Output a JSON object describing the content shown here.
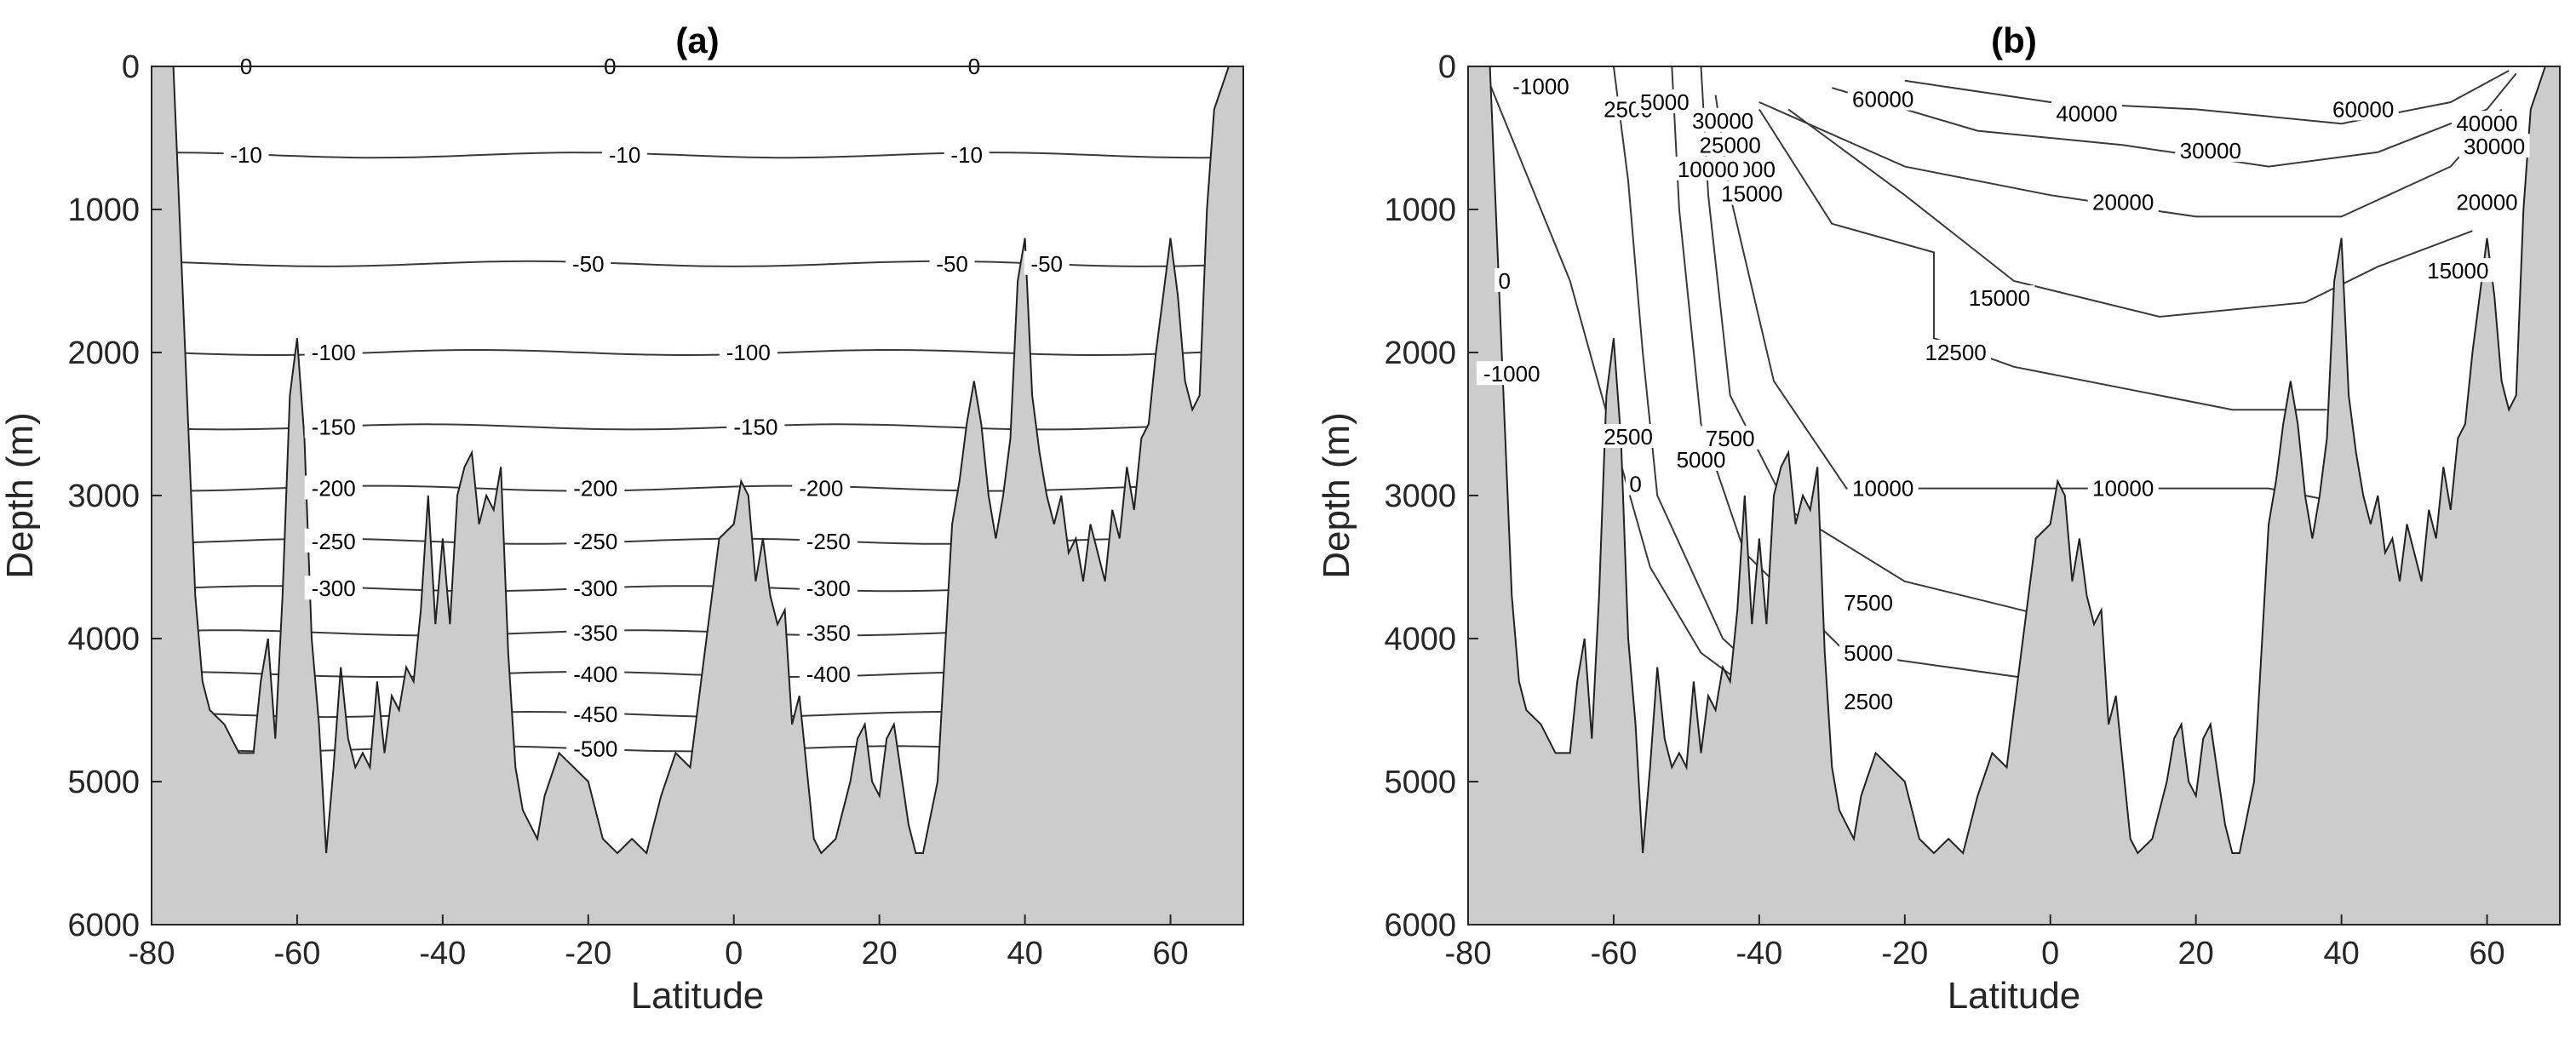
{
  "chart_data": [
    {
      "type": "contour",
      "title": "(a)",
      "xlabel": "Latitude",
      "ylabel": "Depth (m)",
      "xlim": [
        -80,
        70
      ],
      "ylim": [
        6000,
        0
      ],
      "xticks": [
        "-80",
        "-60",
        "-40",
        "-20",
        "0",
        "20",
        "40",
        "60"
      ],
      "yticks": [
        "0",
        "1000",
        "2000",
        "3000",
        "4000",
        "5000",
        "6000"
      ],
      "contours": [
        {
          "level": "0",
          "depth": 0,
          "labels_at": [
            -67,
            -17,
            33
          ]
        },
        {
          "level": "-10",
          "depth": 620,
          "labels_at": [
            -67,
            -15,
            32
          ]
        },
        {
          "level": "-50",
          "depth": 1380,
          "labels_at": [
            -20,
            30,
            43
          ]
        },
        {
          "level": "-100",
          "depth": 2000,
          "labels_at": [
            -55,
            2
          ]
        },
        {
          "level": "-150",
          "depth": 2520,
          "labels_at": [
            -55,
            3
          ]
        },
        {
          "level": "-200",
          "depth": 2950,
          "labels_at": [
            -55,
            -19,
            12
          ]
        },
        {
          "level": "-250",
          "depth": 3320,
          "labels_at": [
            -55,
            -19,
            13
          ]
        },
        {
          "level": "-300",
          "depth": 3650,
          "labels_at": [
            -55,
            -19,
            13
          ]
        },
        {
          "level": "-350",
          "depth": 3960,
          "labels_at": [
            -19,
            13
          ]
        },
        {
          "level": "-400",
          "depth": 4250,
          "labels_at": [
            -19,
            13
          ]
        },
        {
          "level": "-450",
          "depth": 4530,
          "labels_at": [
            -19
          ]
        },
        {
          "level": "-500",
          "depth": 4770,
          "labels_at": [
            -19
          ]
        }
      ]
    },
    {
      "type": "contour",
      "title": "(b)",
      "xlabel": "Latitude",
      "ylabel": "Depth (m)",
      "xlim": [
        -80,
        70
      ],
      "ylim": [
        6000,
        0
      ],
      "xticks": [
        "-80",
        "-60",
        "-40",
        "-20",
        "0",
        "20",
        "40",
        "60"
      ],
      "yticks": [
        "0",
        "1000",
        "2000",
        "3000",
        "4000",
        "5000",
        "6000"
      ],
      "contour_labels": [
        {
          "text": "-1000",
          "lat": -70,
          "depth": 140
        },
        {
          "text": "2500",
          "lat": -58,
          "depth": 300
        },
        {
          "text": "5000",
          "lat": -53,
          "depth": 250
        },
        {
          "text": "30000",
          "lat": -45,
          "depth": 380
        },
        {
          "text": "25000",
          "lat": -44,
          "depth": 550
        },
        {
          "text": "20000",
          "lat": -42,
          "depth": 720
        },
        {
          "text": "15000",
          "lat": -41,
          "depth": 890
        },
        {
          "text": "10000",
          "lat": -47,
          "depth": 720
        },
        {
          "text": "60000",
          "lat": -23,
          "depth": 230
        },
        {
          "text": "60000",
          "lat": 43,
          "depth": 300
        },
        {
          "text": "40000",
          "lat": 5,
          "depth": 330
        },
        {
          "text": "30000",
          "lat": 22,
          "depth": 590
        },
        {
          "text": "20000",
          "lat": 10,
          "depth": 950
        },
        {
          "text": "15000",
          "lat": -7,
          "depth": 1620
        },
        {
          "text": "12500",
          "lat": -13,
          "depth": 2000
        },
        {
          "text": "10000",
          "lat": -23,
          "depth": 2950
        },
        {
          "text": "10000",
          "lat": 10,
          "depth": 2950
        },
        {
          "text": "7500",
          "lat": -44,
          "depth": 2600
        },
        {
          "text": "5000",
          "lat": -48,
          "depth": 2750
        },
        {
          "text": "2500",
          "lat": -58,
          "depth": 2590
        },
        {
          "text": "0",
          "lat": -57,
          "depth": 2920
        },
        {
          "text": "0",
          "lat": -75,
          "depth": 1500
        },
        {
          "text": "-1000",
          "lat": -74,
          "depth": 2150
        },
        {
          "text": "7500",
          "lat": -25,
          "depth": 3750
        },
        {
          "text": "5000",
          "lat": -25,
          "depth": 4100
        },
        {
          "text": "2500",
          "lat": -25,
          "depth": 4440
        },
        {
          "text": "40000",
          "lat": 60,
          "depth": 400
        },
        {
          "text": "30000",
          "lat": 61,
          "depth": 560
        },
        {
          "text": "20000",
          "lat": 60,
          "depth": 950
        },
        {
          "text": "15000",
          "lat": 56,
          "depth": 1430
        }
      ]
    }
  ],
  "bathymetry": {
    "lat": [
      -80,
      -77,
      -74,
      -73,
      -72,
      -70,
      -68,
      -66,
      -65,
      -64,
      -63,
      -62,
      -61,
      -60,
      -59,
      -58,
      -57,
      -56,
      -55,
      -54,
      -53,
      -52,
      -51,
      -50,
      -49,
      -48,
      -47,
      -46,
      -45,
      -44,
      -43,
      -42,
      -41,
      -40,
      -39,
      -38,
      -37,
      -36,
      -35,
      -34,
      -33,
      -32,
      -31,
      -30,
      -29,
      -28,
      -27,
      -26,
      -24,
      -22,
      -20,
      -18,
      -16,
      -14,
      -12,
      -10,
      -8,
      -6,
      -4,
      -2,
      0,
      1,
      2,
      3,
      4,
      5,
      6,
      7,
      8,
      9,
      10,
      11,
      12,
      14,
      16,
      17,
      18,
      19,
      20,
      21,
      22,
      24,
      25,
      26,
      28,
      30,
      31,
      32,
      33,
      34,
      35,
      36,
      37,
      38,
      39,
      40,
      41,
      42,
      43,
      44,
      45,
      46,
      47,
      48,
      49,
      50,
      51,
      52,
      53,
      54,
      55,
      56,
      57,
      58,
      59,
      60,
      61,
      62,
      63,
      64,
      65,
      66,
      67,
      68,
      70
    ],
    "depth": [
      0,
      0,
      3700,
      4300,
      4500,
      4600,
      4800,
      4800,
      4300,
      4000,
      4700,
      3700,
      2300,
      1900,
      2600,
      4000,
      4600,
      5500,
      4900,
      4200,
      4700,
      4900,
      4800,
      4900,
      4300,
      4800,
      4400,
      4500,
      4200,
      4300,
      3800,
      3000,
      3900,
      3300,
      3900,
      3000,
      2800,
      2700,
      3200,
      3000,
      3100,
      2800,
      4100,
      4900,
      5200,
      5300,
      5400,
      5100,
      4800,
      4900,
      5000,
      5400,
      5500,
      5400,
      5500,
      5100,
      4800,
      4900,
      4100,
      3300,
      3200,
      2900,
      3000,
      3600,
      3300,
      3700,
      3900,
      3800,
      4600,
      4400,
      4900,
      5400,
      5500,
      5400,
      5000,
      4700,
      4600,
      5000,
      5100,
      4700,
      4600,
      5300,
      5500,
      5500,
      5000,
      3200,
      2900,
      2500,
      2200,
      2500,
      3000,
      3300,
      3000,
      2600,
      1500,
      1200,
      2300,
      2700,
      3000,
      3200,
      3000,
      3400,
      3300,
      3600,
      3200,
      3400,
      3600,
      3100,
      3300,
      2800,
      3100,
      2600,
      2500,
      2000,
      1600,
      1200,
      1600,
      2200,
      2400,
      2300,
      1000,
      300,
      150,
      0,
      0
    ]
  }
}
